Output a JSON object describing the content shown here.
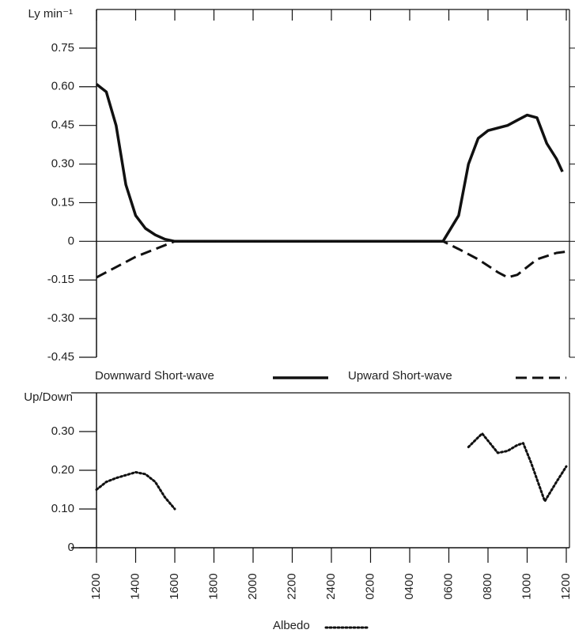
{
  "chart_data": [
    {
      "type": "line",
      "ylabel": "Ly min⁻¹",
      "xlim": [
        0,
        24
      ],
      "ylim": [
        -0.45,
        0.9
      ],
      "yticks": [
        {
          "value": 0.75,
          "label": "0.75"
        },
        {
          "value": 0.6,
          "label": "0.60"
        },
        {
          "value": 0.45,
          "label": "0.45"
        },
        {
          "value": 0.3,
          "label": "0.30"
        },
        {
          "value": 0.15,
          "label": "0.15"
        },
        0,
        {
          "value": -0.15,
          "label": "-0.15"
        },
        {
          "value": -0.3,
          "label": "-0.30"
        },
        {
          "value": -0.45,
          "label": "-0.45"
        }
      ],
      "series": [
        {
          "name": "Downward Short-wave",
          "color": "#111",
          "style": "solid",
          "x": [
            0,
            0.5,
            1,
            1.5,
            2,
            2.5,
            3,
            3.5,
            4,
            17.7,
            18.5,
            19,
            19.5,
            20,
            21,
            21.5,
            22,
            22.5,
            23,
            23.5,
            23.8
          ],
          "values": [
            0.61,
            0.58,
            0.45,
            0.22,
            0.1,
            0.05,
            0.025,
            0.008,
            0,
            0,
            0.1,
            0.3,
            0.4,
            0.43,
            0.45,
            0.47,
            0.49,
            0.48,
            0.38,
            0.32,
            0.27
          ]
        },
        {
          "name": "Upward Short-wave",
          "color": "#111",
          "style": "dashed",
          "x": [
            0,
            1,
            2,
            3,
            4,
            17.7,
            18.5,
            19.5,
            20.5,
            21,
            21.5,
            22.5,
            23.5,
            24
          ],
          "values": [
            -0.14,
            -0.1,
            -0.06,
            -0.03,
            0,
            0,
            -0.03,
            -0.07,
            -0.12,
            -0.14,
            -0.13,
            -0.07,
            -0.045,
            -0.04
          ]
        }
      ]
    },
    {
      "type": "line",
      "ylabel": "Up/Down",
      "xlim": [
        0,
        24
      ],
      "ylim": [
        0,
        0.4
      ],
      "xticks": [
        {
          "value": 0,
          "label": "1200"
        },
        {
          "value": 2,
          "label": "1400"
        },
        {
          "value": 4,
          "label": "1600"
        },
        {
          "value": 6,
          "label": "1800"
        },
        {
          "value": 8,
          "label": "2000"
        },
        {
          "value": 10,
          "label": "2200"
        },
        {
          "value": 12,
          "label": "2400"
        },
        {
          "value": 14,
          "label": "0200"
        },
        {
          "value": 16,
          "label": "0400"
        },
        {
          "value": 18,
          "label": "0600"
        },
        {
          "value": 20,
          "label": "0800"
        },
        {
          "value": 22,
          "label": "1000"
        },
        {
          "value": 24,
          "label": "1200"
        }
      ],
      "yticks": [
        {
          "value": 0.3,
          "label": "0.30"
        },
        {
          "value": 0.2,
          "label": "0.20"
        },
        {
          "value": 0.1,
          "label": "0.10"
        },
        0
      ],
      "series": [
        {
          "name": "Albedo",
          "color": "#111",
          "style": "dotted",
          "x": [
            0,
            0.5,
            1,
            2,
            2.5,
            3,
            3.5,
            4,
            12,
            19,
            19.4,
            19.7,
            20.1,
            20.5,
            21,
            21.5,
            21.8,
            22.2,
            22.9,
            23.5,
            24
          ],
          "values": [
            0.15,
            0.17,
            0.18,
            0.195,
            0.19,
            0.17,
            0.13,
            0.1,
            null,
            0.26,
            0.28,
            0.295,
            0.27,
            0.245,
            0.25,
            0.265,
            0.27,
            0.22,
            0.12,
            0.17,
            0.21
          ]
        }
      ]
    }
  ]
}
